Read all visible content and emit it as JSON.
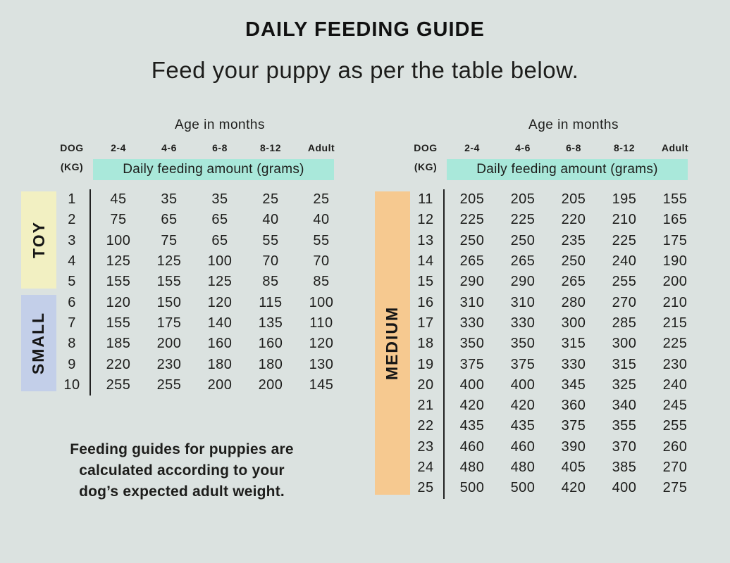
{
  "colors": {
    "background": "#dbe2e0",
    "highlight_teal": "#a9e8da",
    "toy_yellow": "#f2f0c2",
    "small_blue": "#c3cfe9",
    "medium_orange": "#f6c990",
    "text": "#1d1d1b"
  },
  "chart_data": {
    "type": "table",
    "title": "DAILY FEEDING GUIDE",
    "subtitle": "Feed your puppy as per the table below.",
    "column_group_label": "Age in months",
    "row_header_line1": "DOG",
    "row_header_line2": "(KG)",
    "columns": [
      "2-4",
      "4-6",
      "6-8",
      "8-12",
      "Adult"
    ],
    "units_banner": "Daily feeding amount (grams)",
    "tables": [
      {
        "groups": [
          {
            "label": "TOY",
            "color_key": "toy_yellow",
            "rows": [
              {
                "kg": "1",
                "values": [
                  "45",
                  "35",
                  "35",
                  "25",
                  "25"
                ]
              },
              {
                "kg": "2",
                "values": [
                  "75",
                  "65",
                  "65",
                  "40",
                  "40"
                ]
              },
              {
                "kg": "3",
                "values": [
                  "100",
                  "75",
                  "65",
                  "55",
                  "55"
                ]
              },
              {
                "kg": "4",
                "values": [
                  "125",
                  "125",
                  "100",
                  "70",
                  "70"
                ]
              },
              {
                "kg": "5",
                "values": [
                  "155",
                  "155",
                  "125",
                  "85",
                  "85"
                ]
              }
            ]
          },
          {
            "label": "SMALL",
            "color_key": "small_blue",
            "rows": [
              {
                "kg": "6",
                "values": [
                  "120",
                  "150",
                  "120",
                  "115",
                  "100"
                ]
              },
              {
                "kg": "7",
                "values": [
                  "155",
                  "175",
                  "140",
                  "135",
                  "110"
                ]
              },
              {
                "kg": "8",
                "values": [
                  "185",
                  "200",
                  "160",
                  "160",
                  "120"
                ]
              },
              {
                "kg": "9",
                "values": [
                  "220",
                  "230",
                  "180",
                  "180",
                  "130"
                ]
              },
              {
                "kg": "10",
                "values": [
                  "255",
                  "255",
                  "200",
                  "200",
                  "145"
                ]
              }
            ]
          }
        ]
      },
      {
        "groups": [
          {
            "label": "MEDIUM",
            "color_key": "medium_orange",
            "rows": [
              {
                "kg": "11",
                "values": [
                  "205",
                  "205",
                  "205",
                  "195",
                  "155"
                ]
              },
              {
                "kg": "12",
                "values": [
                  "225",
                  "225",
                  "220",
                  "210",
                  "165"
                ]
              },
              {
                "kg": "13",
                "values": [
                  "250",
                  "250",
                  "235",
                  "225",
                  "175"
                ]
              },
              {
                "kg": "14",
                "values": [
                  "265",
                  "265",
                  "250",
                  "240",
                  "190"
                ]
              },
              {
                "kg": "15",
                "values": [
                  "290",
                  "290",
                  "265",
                  "255",
                  "200"
                ]
              },
              {
                "kg": "16",
                "values": [
                  "310",
                  "310",
                  "280",
                  "270",
                  "210"
                ]
              },
              {
                "kg": "17",
                "values": [
                  "330",
                  "330",
                  "300",
                  "285",
                  "215"
                ]
              },
              {
                "kg": "18",
                "values": [
                  "350",
                  "350",
                  "315",
                  "300",
                  "225"
                ]
              },
              {
                "kg": "19",
                "values": [
                  "375",
                  "375",
                  "330",
                  "315",
                  "230"
                ]
              },
              {
                "kg": "20",
                "values": [
                  "400",
                  "400",
                  "345",
                  "325",
                  "240"
                ]
              },
              {
                "kg": "21",
                "values": [
                  "420",
                  "420",
                  "360",
                  "340",
                  "245"
                ]
              },
              {
                "kg": "22",
                "values": [
                  "435",
                  "435",
                  "375",
                  "355",
                  "255"
                ]
              },
              {
                "kg": "23",
                "values": [
                  "460",
                  "460",
                  "390",
                  "370",
                  "260"
                ]
              },
              {
                "kg": "24",
                "values": [
                  "480",
                  "480",
                  "405",
                  "385",
                  "270"
                ]
              },
              {
                "kg": "25",
                "values": [
                  "500",
                  "500",
                  "420",
                  "400",
                  "275"
                ]
              }
            ]
          }
        ]
      }
    ],
    "footnote_lines": [
      "Feeding guides for puppies are",
      "calculated according to your",
      "dog’s expected adult weight."
    ]
  }
}
